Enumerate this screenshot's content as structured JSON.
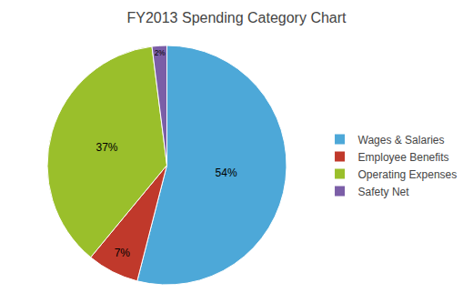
{
  "chart_data": {
    "type": "pie",
    "title": "FY2013 Spending Category Chart",
    "categories": [
      "Wages & Salaries",
      "Employee Benefits",
      "Operating Expenses",
      "Safety Net"
    ],
    "values": [
      54,
      7,
      37,
      2
    ],
    "value_labels": [
      "54%",
      "7%",
      "37%",
      "2%"
    ],
    "colors": [
      "#4DA8D8",
      "#C0392B",
      "#9ABF2B",
      "#7B5EA7"
    ],
    "legend": "right",
    "data_labels": true
  }
}
